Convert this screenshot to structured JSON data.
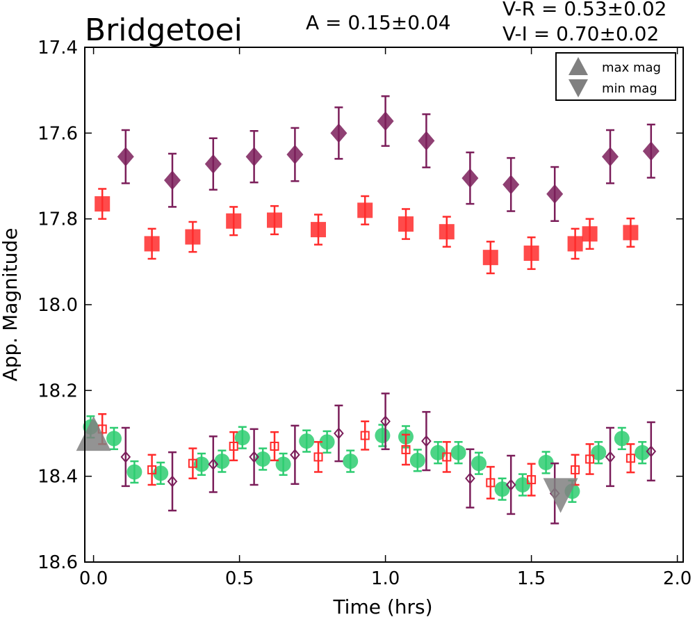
{
  "header": {
    "object_name": "Bridgetoei",
    "amplitude": "A  = 0.15±0.04",
    "v_r": "V-R = 0.53±0.02",
    "v_i": "V-I  = 0.70±0.02"
  },
  "legend": {
    "max_label": "max mag",
    "min_label": "min mag",
    "marker_color": "#808080"
  },
  "chart_data": {
    "type": "scatter",
    "xlabel": "Time (hrs)",
    "ylabel": "App. Magnitude",
    "xlim": [
      -0.03,
      2.02
    ],
    "ylim": [
      18.6,
      17.4
    ],
    "y_inverted": true,
    "xticks": [
      "0.0",
      "0.5",
      "1.0",
      "1.5",
      "2.0"
    ],
    "xtick_values": [
      0.0,
      0.5,
      1.0,
      1.5,
      2.0
    ],
    "yticks": [
      "17.4",
      "17.6",
      "17.8",
      "18.0",
      "18.2",
      "18.4",
      "18.6"
    ],
    "ytick_values": [
      17.4,
      17.6,
      17.8,
      18.0,
      18.2,
      18.4,
      18.6
    ],
    "colors": {
      "I": "#7b1e5a",
      "R": "#ff2b2b",
      "V": "#2ecc71",
      "max_min": "#808080"
    },
    "series": [
      {
        "band": "I",
        "marker": "diamond-filled",
        "x": [
          0.11,
          0.27,
          0.41,
          0.55,
          0.69,
          0.84,
          1.0,
          1.14,
          1.29,
          1.43,
          1.58,
          1.77,
          1.91
        ],
        "y": [
          17.655,
          17.71,
          17.672,
          17.655,
          17.65,
          17.6,
          17.572,
          17.618,
          17.705,
          17.72,
          17.742,
          17.655,
          17.642
        ],
        "err": [
          0.062,
          0.062,
          0.06,
          0.06,
          0.062,
          0.06,
          0.058,
          0.062,
          0.06,
          0.062,
          0.063,
          0.062,
          0.062
        ]
      },
      {
        "band": "R",
        "marker": "square-filled",
        "x": [
          0.03,
          0.2,
          0.34,
          0.48,
          0.62,
          0.77,
          0.93,
          1.07,
          1.21,
          1.36,
          1.5,
          1.65,
          1.7,
          1.84
        ],
        "y": [
          17.765,
          17.858,
          17.842,
          17.805,
          17.803,
          17.825,
          17.78,
          17.812,
          17.83,
          17.89,
          17.88,
          17.858,
          17.835,
          17.832
        ],
        "err": [
          0.035,
          0.035,
          0.035,
          0.033,
          0.033,
          0.035,
          0.033,
          0.035,
          0.035,
          0.037,
          0.037,
          0.035,
          0.035,
          0.033
        ]
      },
      {
        "band": "V",
        "marker": "circle-filled",
        "x": [
          -0.01,
          0.07,
          0.14,
          0.23,
          0.37,
          0.44,
          0.51,
          0.58,
          0.65,
          0.73,
          0.8,
          0.88,
          0.99,
          1.07,
          1.11,
          1.18,
          1.25,
          1.32,
          1.4,
          1.47,
          1.55,
          1.64,
          1.73,
          1.81,
          1.88
        ],
        "y": [
          18.285,
          18.312,
          18.39,
          18.393,
          18.372,
          18.365,
          18.31,
          18.36,
          18.372,
          18.318,
          18.32,
          18.365,
          18.305,
          18.308,
          18.363,
          18.345,
          18.345,
          18.37,
          18.43,
          18.42,
          18.368,
          18.435,
          18.345,
          18.312,
          18.345
        ],
        "err": [
          0.025,
          0.025,
          0.025,
          0.025,
          0.025,
          0.025,
          0.025,
          0.025,
          0.025,
          0.025,
          0.025,
          0.025,
          0.025,
          0.025,
          0.025,
          0.025,
          0.025,
          0.025,
          0.025,
          0.025,
          0.025,
          0.025,
          0.025,
          0.025,
          0.025
        ]
      },
      {
        "band": "R_shifted",
        "marker": "square-open",
        "x": [
          0.03,
          0.2,
          0.34,
          0.48,
          0.62,
          0.77,
          0.93,
          1.07,
          1.21,
          1.36,
          1.5,
          1.65,
          1.7,
          1.84
        ],
        "y": [
          18.29,
          18.385,
          18.37,
          18.33,
          18.33,
          18.355,
          18.305,
          18.338,
          18.355,
          18.415,
          18.408,
          18.385,
          18.36,
          18.358
        ],
        "err": [
          0.035,
          0.035,
          0.035,
          0.033,
          0.033,
          0.035,
          0.033,
          0.035,
          0.035,
          0.037,
          0.037,
          0.035,
          0.035,
          0.033
        ]
      },
      {
        "band": "I_shifted",
        "marker": "diamond-open",
        "x": [
          0.11,
          0.27,
          0.41,
          0.55,
          0.69,
          0.84,
          1.0,
          1.14,
          1.29,
          1.43,
          1.58,
          1.77,
          1.91
        ],
        "y": [
          18.355,
          18.412,
          18.372,
          18.355,
          18.35,
          18.3,
          18.272,
          18.318,
          18.405,
          18.42,
          18.44,
          18.355,
          18.342
        ],
        "err": [
          0.068,
          0.068,
          0.065,
          0.065,
          0.068,
          0.065,
          0.065,
          0.068,
          0.068,
          0.068,
          0.07,
          0.068,
          0.068
        ]
      }
    ],
    "extrema": [
      {
        "label": "max mag",
        "marker": "triangle-up",
        "x": 0.0,
        "y": 18.305
      },
      {
        "label": "min mag",
        "marker": "triangle-down",
        "x": 1.6,
        "y": 18.44
      }
    ],
    "legend_position": "top-right"
  }
}
